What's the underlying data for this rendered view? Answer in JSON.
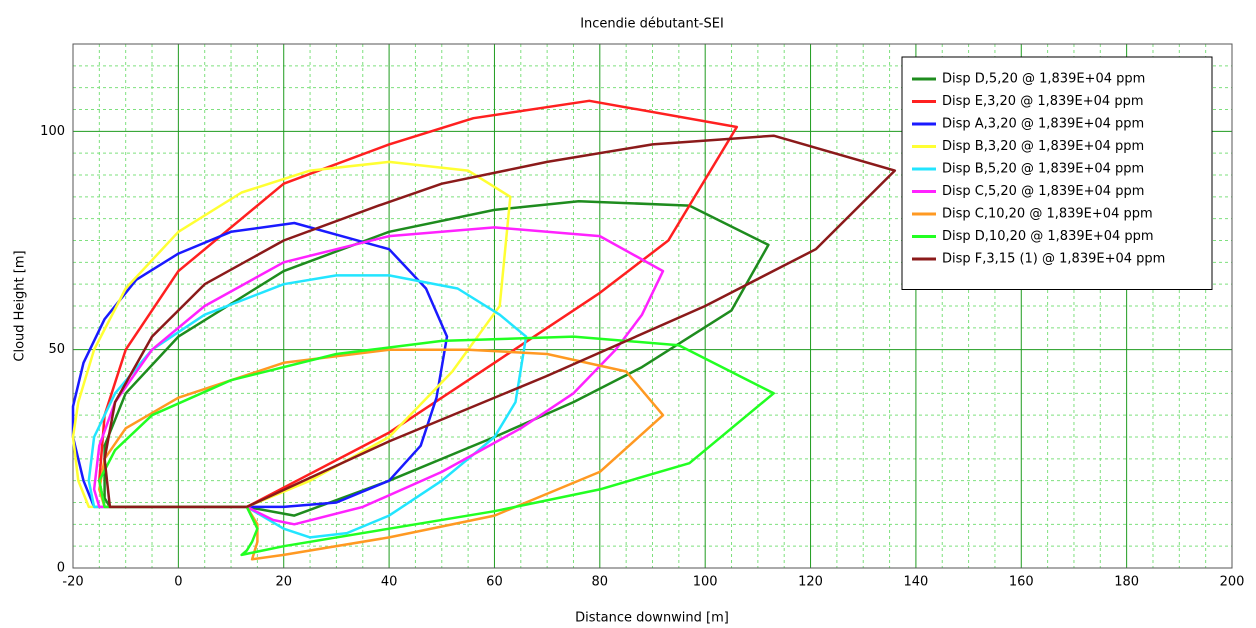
{
  "chart_data": {
    "type": "line",
    "title": "Incendie débutant-SEI",
    "x_label": "Distance downwind [m]",
    "y_label": "Cloud Height [m]",
    "xlim": [
      -20,
      200
    ],
    "ylim": [
      0,
      120
    ],
    "xticks": [
      -20,
      0,
      20,
      40,
      60,
      80,
      100,
      120,
      140,
      160,
      180,
      200
    ],
    "yticks": [
      0,
      50,
      100
    ],
    "xminorticks": [
      -15,
      -10,
      -5,
      5,
      10,
      15,
      25,
      30,
      35,
      45,
      50,
      55,
      65,
      70,
      75,
      85,
      90,
      95,
      105,
      110,
      115,
      125,
      130,
      135,
      145,
      150,
      155,
      165,
      170,
      175,
      185,
      190,
      195
    ],
    "yminorticks": [
      5,
      10,
      15,
      20,
      25,
      30,
      35,
      40,
      45,
      55,
      60,
      65,
      70,
      75,
      80,
      85,
      90,
      95,
      105,
      110,
      115
    ],
    "grid": true,
    "legend": "upper right",
    "series": [
      {
        "name": "Disp D,5,20 @ 1,839E+04 ppm",
        "color": "#1e8c1e",
        "x": [
          13,
          22,
          40,
          60,
          75,
          88,
          105,
          112,
          97,
          76,
          60,
          40,
          20,
          0,
          -10,
          -14,
          -14,
          -13,
          13
        ],
        "values": [
          14,
          12,
          20,
          30,
          38,
          46,
          59,
          74,
          83,
          84,
          82,
          77,
          68,
          53,
          40,
          28,
          16,
          14,
          14
        ]
      },
      {
        "name": "Disp E,3,20 @ 1,839E+04 ppm",
        "color": "#ff2020",
        "x": [
          13,
          40,
          60,
          80,
          93,
          106,
          78,
          56,
          40,
          20,
          0,
          -10,
          -14,
          -15,
          -14,
          13
        ],
        "values": [
          14,
          31,
          47,
          63,
          75,
          101,
          107,
          103,
          97,
          88,
          68,
          50,
          35,
          20,
          14,
          14
        ]
      },
      {
        "name": "Disp A,3,20 @ 1,839E+04 ppm",
        "color": "#1a1aff",
        "x": [
          13,
          20,
          30,
          40,
          46,
          49,
          51,
          47,
          40,
          22,
          10,
          0,
          -8,
          -14,
          -18,
          -20,
          -20,
          -18,
          -16,
          13
        ],
        "values": [
          14,
          14,
          15,
          20,
          28,
          39,
          53,
          64,
          73,
          79,
          77,
          72,
          66,
          57,
          47,
          37,
          30,
          20,
          14,
          14
        ]
      },
      {
        "name": "Disp B,3,20 @ 1,839E+04 ppm",
        "color": "#ffff33",
        "x": [
          13,
          25,
          40,
          52,
          58,
          61,
          63,
          55,
          40,
          25,
          12,
          0,
          -10,
          -16,
          -19,
          -20,
          -19,
          -17,
          13
        ],
        "values": [
          14,
          20,
          30,
          45,
          55,
          60,
          85,
          91,
          93,
          91,
          86,
          77,
          64,
          50,
          38,
          30,
          20,
          14,
          14
        ]
      },
      {
        "name": "Disp B,5,20 @ 1,839E+04 ppm",
        "color": "#22e5ff",
        "x": [
          13,
          20,
          25,
          32,
          40,
          50,
          60,
          64,
          66,
          61,
          53,
          40,
          30,
          20,
          5,
          -5,
          -12,
          -16,
          -17,
          -16,
          13
        ],
        "values": [
          14,
          9,
          7,
          8,
          12,
          20,
          30,
          38,
          53,
          58,
          64,
          67,
          67,
          65,
          58,
          50,
          40,
          30,
          20,
          14,
          14
        ]
      },
      {
        "name": "Disp C,5,20 @ 1,839E+04 ppm",
        "color": "#ff22ff",
        "x": [
          13,
          18,
          22,
          35,
          50,
          65,
          75,
          83,
          88,
          92,
          80,
          60,
          40,
          20,
          5,
          -5,
          -12,
          -15,
          -16,
          -15,
          13
        ],
        "values": [
          14,
          11,
          10,
          14,
          22,
          32,
          40,
          50,
          58,
          68,
          76,
          78,
          76,
          70,
          60,
          50,
          38,
          28,
          18,
          14,
          14
        ]
      },
      {
        "name": "Disp C,10,20 @ 1,839E+04 ppm",
        "color": "#ff9922",
        "x": [
          13,
          15,
          15,
          14,
          20,
          40,
          60,
          68,
          80,
          92,
          85,
          70,
          55,
          40,
          20,
          0,
          -10,
          -14,
          -15,
          -14,
          13
        ],
        "values": [
          14,
          10,
          6,
          2,
          3,
          7,
          12,
          16,
          22,
          35,
          45,
          49,
          50,
          50,
          47,
          39,
          32,
          25,
          18,
          14,
          14
        ]
      },
      {
        "name": "Disp D,10,20 @ 1,839E+04 ppm",
        "color": "#22ff22",
        "x": [
          13,
          15,
          14,
          13,
          12,
          20,
          40,
          60,
          80,
          97,
          113,
          95,
          75,
          50,
          30,
          10,
          -5,
          -12,
          -15,
          -14,
          13
        ],
        "values": [
          14,
          9,
          6,
          4,
          3,
          5,
          9,
          13,
          18,
          24,
          40,
          51,
          53,
          52,
          49,
          43,
          35,
          27,
          20,
          14,
          14
        ]
      },
      {
        "name": "Disp F,3,15 (1) @ 1,839E+04 ppm",
        "color": "#8b1a1a",
        "x": [
          13,
          40,
          70,
          100,
          121,
          136,
          113,
          90,
          70,
          50,
          38,
          20,
          5,
          -5,
          -12,
          -14,
          -13,
          13
        ],
        "values": [
          14,
          29,
          44,
          60,
          73,
          91,
          99,
          97,
          93,
          88,
          83,
          75,
          65,
          53,
          38,
          25,
          14,
          14
        ]
      }
    ]
  }
}
